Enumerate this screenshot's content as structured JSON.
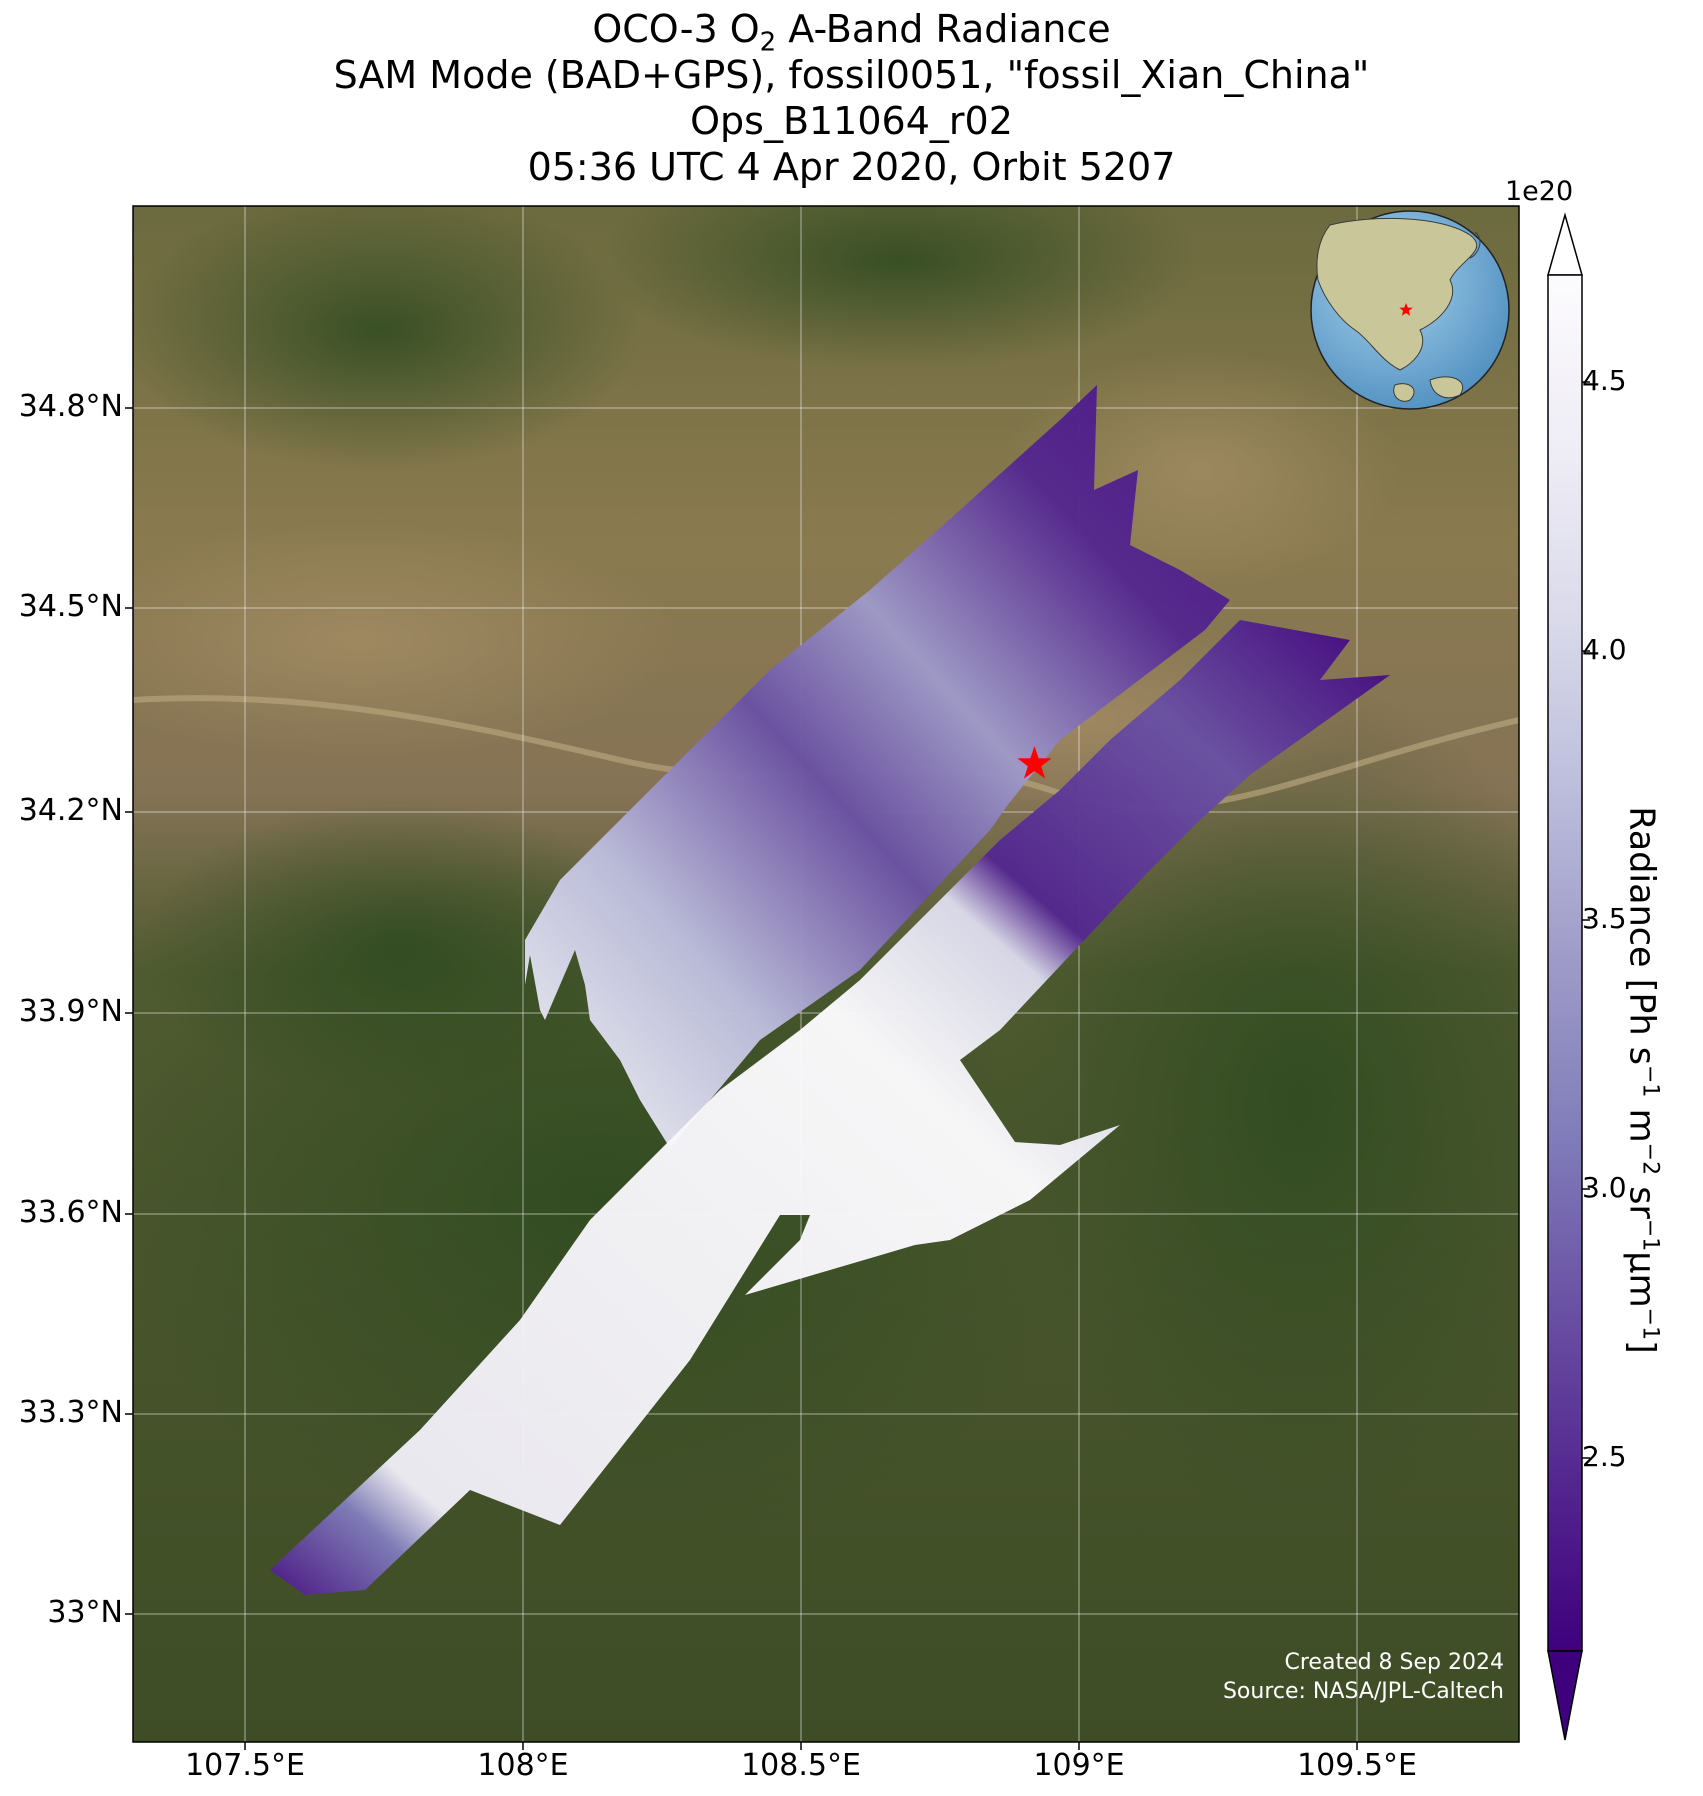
{
  "title": {
    "line1_pre": "OCO-3 O",
    "line1_sub": "2",
    "line1_post": " A-Band Radiance",
    "line2": "SAM Mode (BAD+GPS), fossil0051, \"fossil_Xian_China\"",
    "line3": "Ops_B11064_r02",
    "line4": "05:36 UTC 4 Apr 2020, Orbit 5207"
  },
  "axes": {
    "lat_labels": [
      "34.8°N",
      "34.5°N",
      "34.2°N",
      "33.9°N",
      "33.6°N",
      "33.3°N",
      "33°N"
    ],
    "lon_labels": [
      "107.5°E",
      "108°E",
      "108.5°E",
      "109°E",
      "109.5°E"
    ]
  },
  "colorbar": {
    "exponent": "1e20",
    "ticks": [
      "4.5",
      "4.0",
      "3.5",
      "3.0",
      "2.5"
    ],
    "label_parts": [
      "Radiance [Ph s",
      "−1",
      " m",
      "−2",
      " sr",
      "−1",
      "μm",
      "−1",
      "]"
    ],
    "colormap": [
      "#3f007d",
      "#54278f",
      "#6a51a3",
      "#807dba",
      "#9e9ac8",
      "#bcbddc",
      "#dadaeb",
      "#efedf5",
      "#fcfbfd"
    ]
  },
  "credit": {
    "line1": "Created 8 Sep 2024",
    "line2": "Source: NASA/JPL-Caltech"
  },
  "target_marker": {
    "symbol": "star",
    "color": "#ff0000",
    "lon": 108.92,
    "lat": 34.27
  },
  "chart_data": {
    "type": "heatmap",
    "variable": "OCO-3 O2 A-Band Radiance",
    "units": "Ph s^-1 m^-2 sr^-1 μm^-1 (×1e20)",
    "extent": {
      "lon": [
        107.3,
        109.8
      ],
      "lat": [
        32.8,
        35.1
      ]
    },
    "color_range": [
      2.05,
      4.75
    ],
    "grid": true,
    "inset_globe": {
      "position": "top-right",
      "marker_color": "#ff0000"
    },
    "swaths": [
      {
        "lon": [
          108.95,
          109.05,
          109.25,
          109.2
        ],
        "lat": [
          34.75,
          34.65,
          34.5,
          34.35
        ],
        "value": 2.4
      },
      {
        "lon": [
          108.6,
          108.7,
          108.8,
          108.9
        ],
        "lat": [
          34.35,
          34.3,
          34.2,
          34.1
        ],
        "value": 3.3
      },
      {
        "lon": [
          108.1,
          108.2,
          108.3,
          108.45
        ],
        "lat": [
          34.0,
          33.9,
          33.8,
          33.75
        ],
        "value": 4.5
      },
      {
        "lon": [
          109.2,
          109.3,
          109.1,
          108.9
        ],
        "lat": [
          34.45,
          34.3,
          34.15,
          34.0
        ],
        "value": 2.2
      },
      {
        "lon": [
          108.7,
          108.8,
          108.9
        ],
        "lat": [
          33.9,
          33.85,
          33.95
        ],
        "value": 2.4
      },
      {
        "lon": [
          108.4,
          108.5,
          108.6,
          108.7
        ],
        "lat": [
          33.75,
          33.65,
          33.6,
          33.55
        ],
        "value": 4.55
      },
      {
        "lon": [
          107.9,
          108.0,
          108.1,
          108.2
        ],
        "lat": [
          33.45,
          33.4,
          33.35,
          33.3
        ],
        "value": 4.5
      },
      {
        "lon": [
          107.8,
          107.9
        ],
        "lat": [
          33.28,
          33.25
        ],
        "value": 3.1
      },
      {
        "lon": [
          107.55,
          107.65,
          107.7
        ],
        "lat": [
          33.05,
          33.1,
          33.12
        ],
        "value": 2.5
      }
    ]
  }
}
